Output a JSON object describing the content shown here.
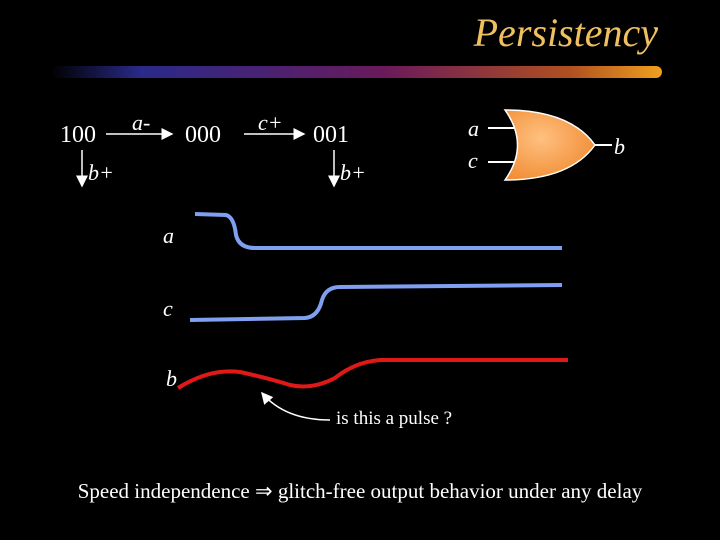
{
  "title": "Persistency",
  "states": {
    "s100": "100",
    "s000": "000",
    "s001": "001"
  },
  "transitions": {
    "a_minus": "a-",
    "c_plus": "c+",
    "b_plus_1": "b+",
    "b_plus_2": "b+"
  },
  "gate": {
    "input_a": "a",
    "input_c": "c",
    "output_b": "b"
  },
  "waveforms": {
    "a": "a",
    "c": "c",
    "b": "b"
  },
  "annotation": "is this a pulse ?",
  "footer": "Speed independence ⇒ glitch-free output behavior under any delay"
}
